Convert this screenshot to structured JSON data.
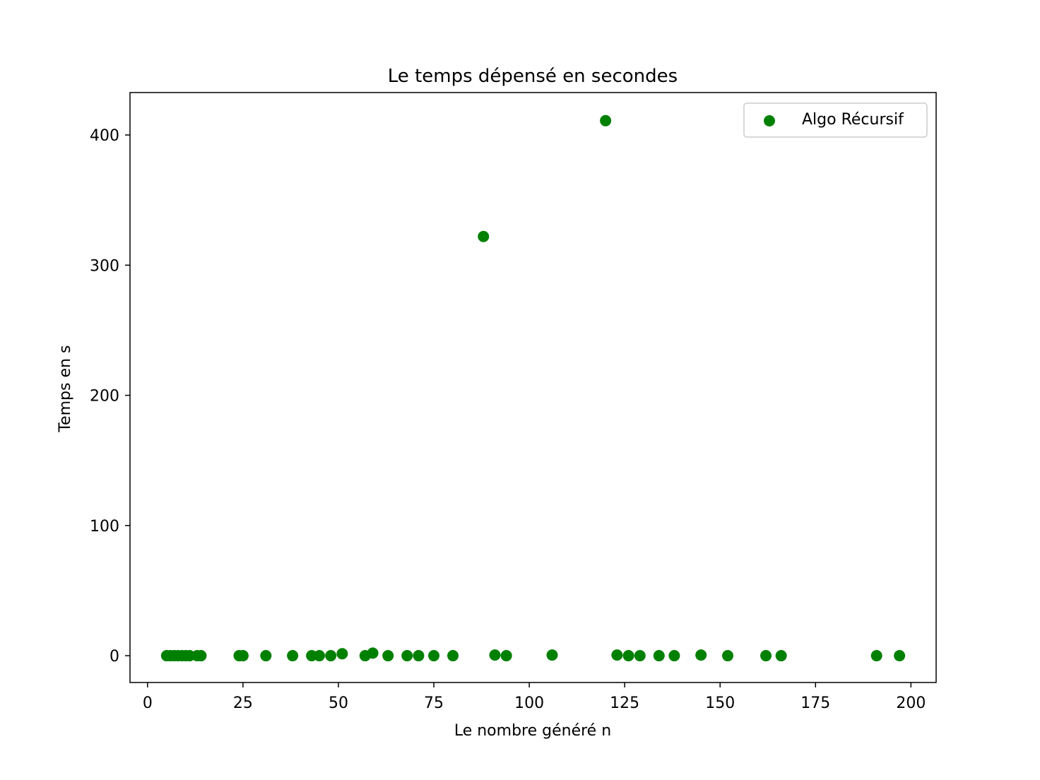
{
  "chart_data": {
    "type": "scatter",
    "title": "Le temps dépensé en secondes",
    "xlabel": "Le nombre généré n",
    "ylabel": "Temps en s",
    "xlim": [
      -4.6,
      206.6
    ],
    "ylim": [
      -20.6,
      432.6
    ],
    "xticks": [
      0,
      25,
      50,
      75,
      100,
      125,
      150,
      175,
      200
    ],
    "yticks": [
      0,
      100,
      200,
      300,
      400
    ],
    "grid": false,
    "legend_position": "top-right",
    "series": [
      {
        "name": "Algo Récursif",
        "color": "#008000",
        "x": [
          5,
          6,
          7,
          8,
          9,
          10,
          11,
          13,
          14,
          24,
          25,
          31,
          38,
          43,
          45,
          48,
          51,
          57,
          59,
          63,
          68,
          71,
          75,
          80,
          88,
          91,
          94,
          106,
          120,
          123,
          126,
          129,
          134,
          138,
          145,
          152,
          162,
          166,
          191,
          197
        ],
        "y": [
          0,
          0,
          0,
          0,
          0,
          0,
          0,
          0,
          0,
          0,
          0,
          0,
          0,
          0,
          0,
          0,
          1.5,
          0,
          2,
          0,
          0,
          0,
          0,
          0,
          322,
          0.5,
          0,
          0.5,
          411,
          0.5,
          0,
          0,
          0,
          0,
          0.5,
          0,
          0,
          0,
          0,
          0
        ]
      }
    ]
  }
}
